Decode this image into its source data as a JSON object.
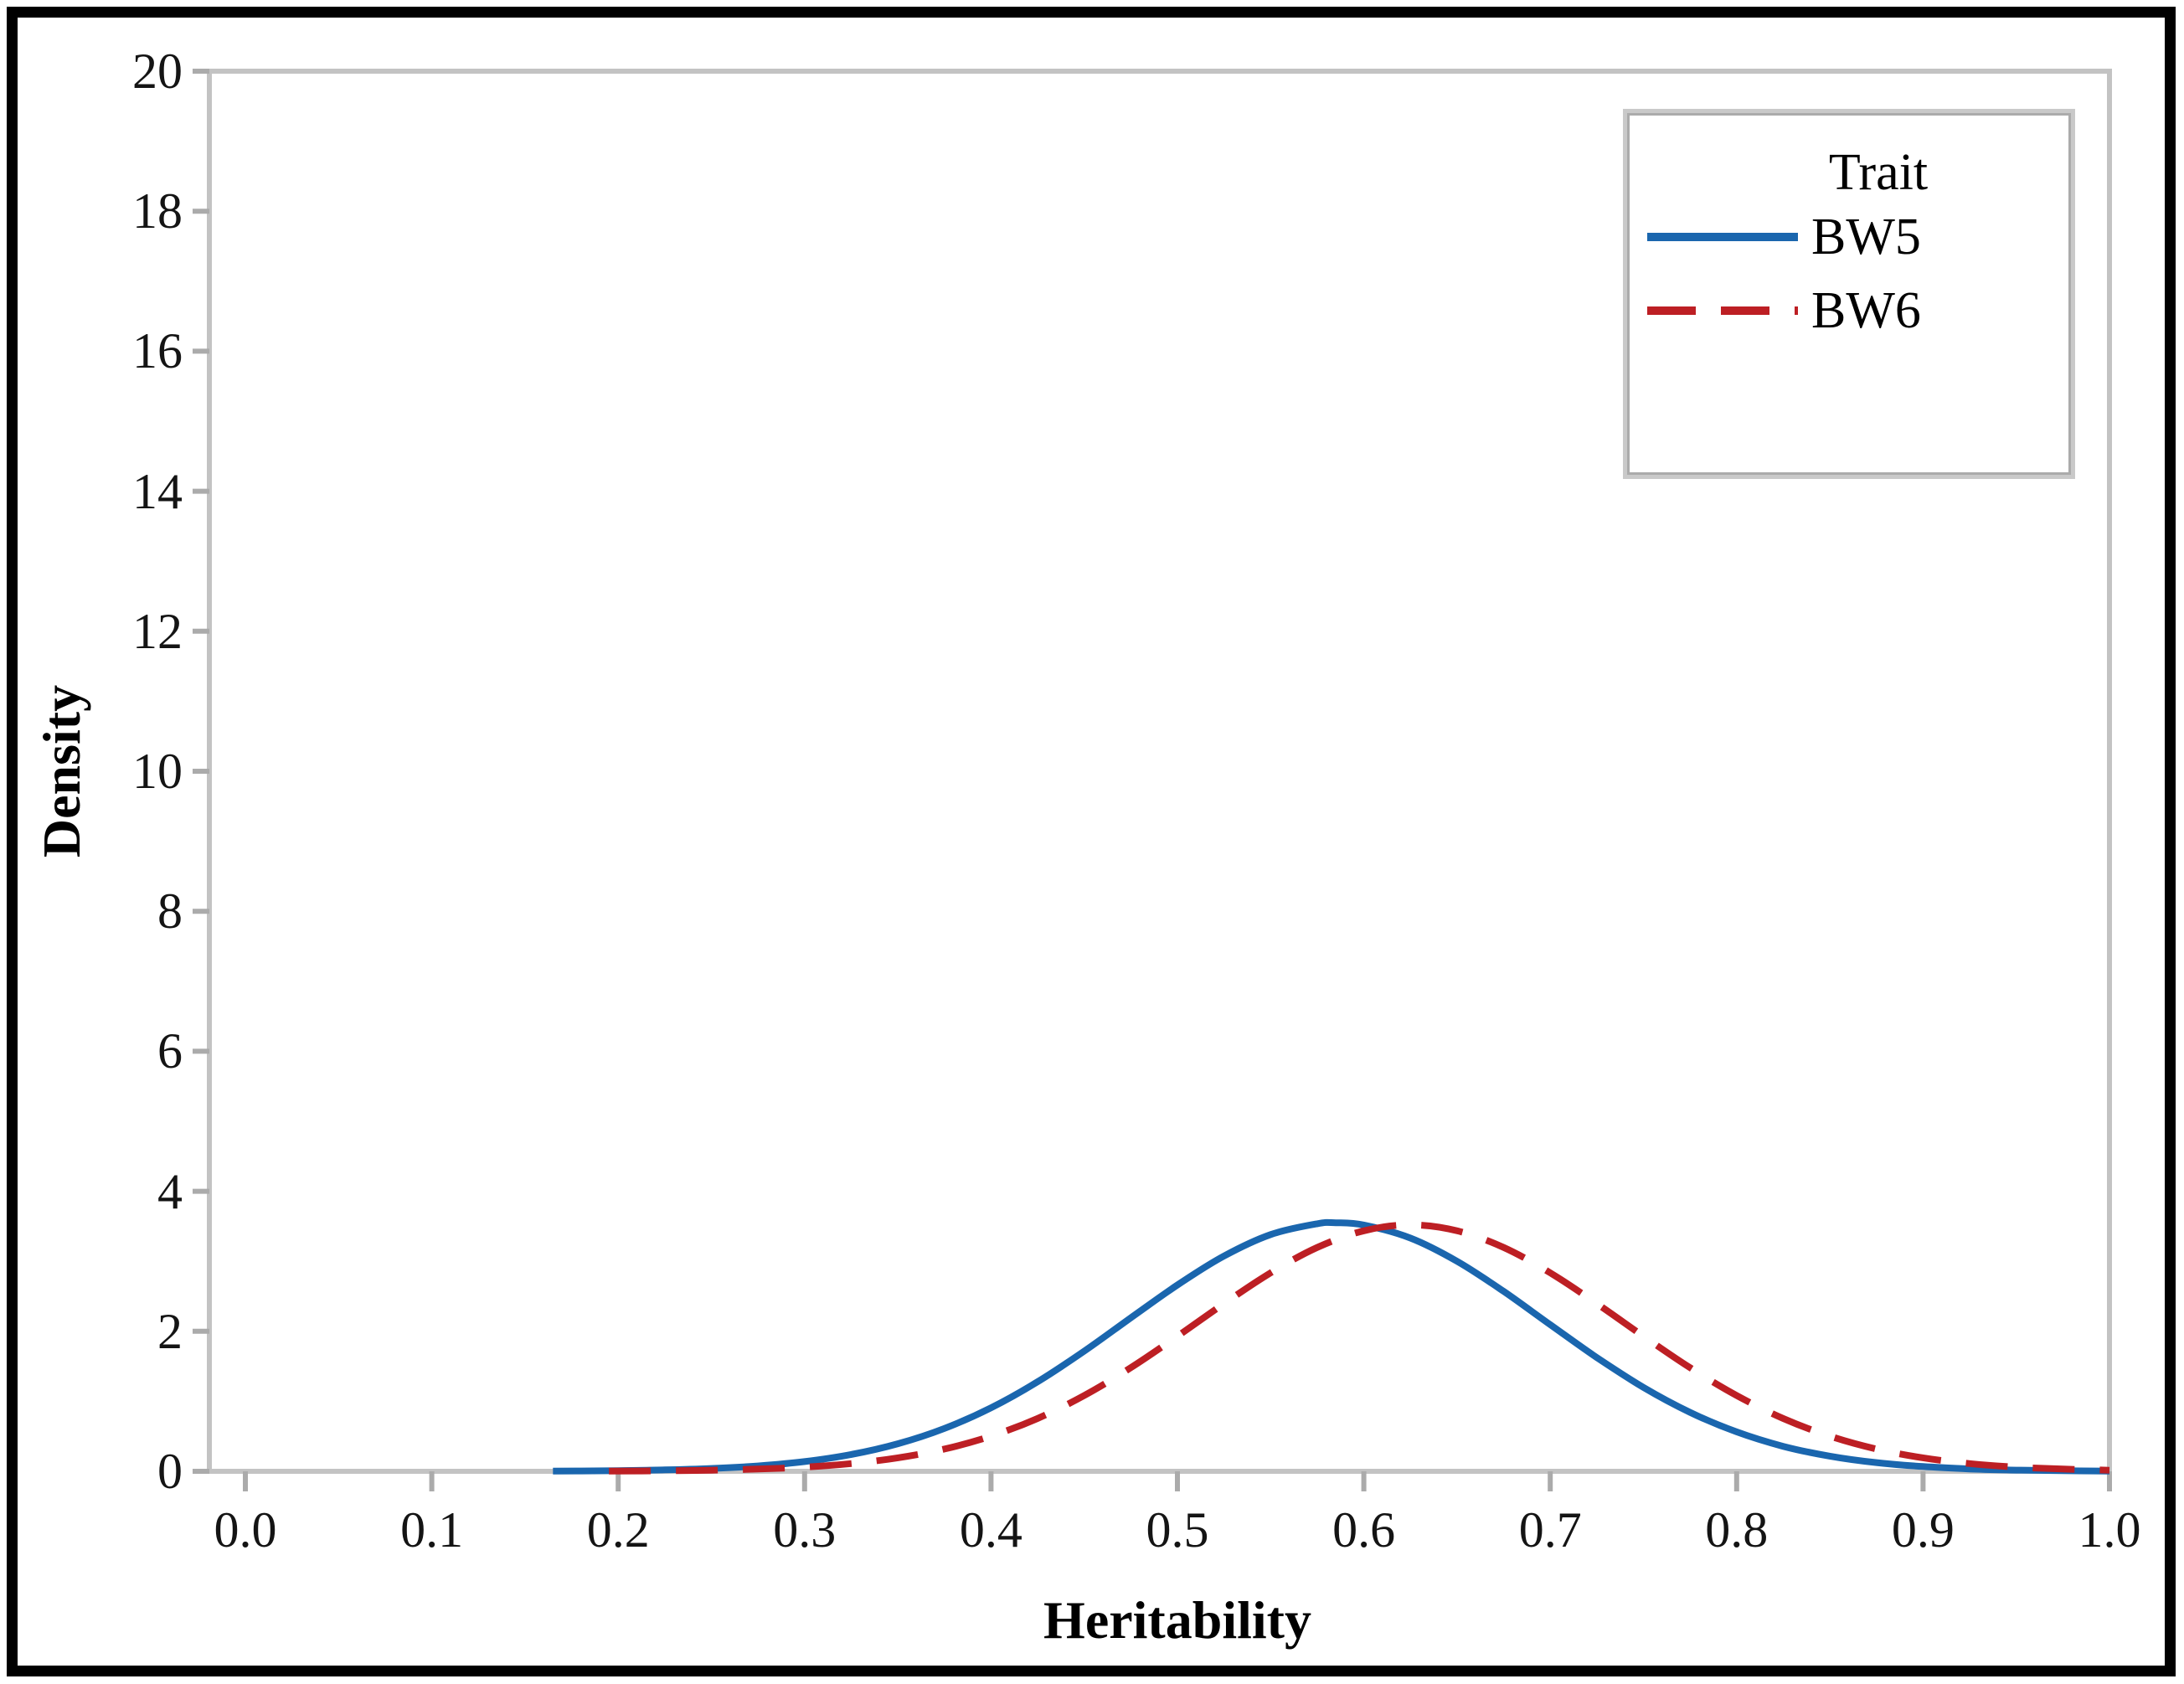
{
  "figure": {
    "background": "#ffffff",
    "border_color": "#000000"
  },
  "chart_data": {
    "type": "line",
    "title": "",
    "xlabel": "Heritability",
    "ylabel": "Density",
    "xlim": [
      0.0,
      1.0
    ],
    "ylim": [
      0,
      20
    ],
    "grid": "off",
    "axis_color": "#c3c3c3",
    "tick_color": "#ababab",
    "x_ticks": [
      "0.0",
      "0.1",
      "0.2",
      "0.3",
      "0.4",
      "0.5",
      "0.6",
      "0.7",
      "0.8",
      "0.9",
      "1.0"
    ],
    "y_ticks": [
      "0",
      "2",
      "4",
      "6",
      "8",
      "10",
      "12",
      "14",
      "16",
      "18",
      "20"
    ],
    "legend": {
      "title": "Trait",
      "position": "top-right",
      "entries": [
        {
          "label": "BW5",
          "line_style": "solid",
          "color": "#1a66ae"
        },
        {
          "label": "BW6",
          "line_style": "dashed",
          "color": "#bd1f24"
        }
      ]
    },
    "series": [
      {
        "name": "BW5",
        "color": "#1a66ae",
        "line_style": "solid",
        "peak": {
          "x": 0.585,
          "density": 3.55
        },
        "points": [
          [
            0.165,
            0.003
          ],
          [
            0.18,
            0.005
          ],
          [
            0.2,
            0.01
          ],
          [
            0.225,
            0.02
          ],
          [
            0.25,
            0.041
          ],
          [
            0.275,
            0.077
          ],
          [
            0.3,
            0.139
          ],
          [
            0.325,
            0.24
          ],
          [
            0.35,
            0.393
          ],
          [
            0.375,
            0.612
          ],
          [
            0.4,
            0.907
          ],
          [
            0.425,
            1.279
          ],
          [
            0.45,
            1.717
          ],
          [
            0.475,
            2.192
          ],
          [
            0.5,
            2.662
          ],
          [
            0.525,
            3.075
          ],
          [
            0.55,
            3.381
          ],
          [
            0.575,
            3.536
          ],
          [
            0.585,
            3.55
          ],
          [
            0.6,
            3.518
          ],
          [
            0.625,
            3.331
          ],
          [
            0.65,
            3.0
          ],
          [
            0.675,
            2.57
          ],
          [
            0.7,
            2.095
          ],
          [
            0.725,
            1.625
          ],
          [
            0.75,
            1.199
          ],
          [
            0.775,
            0.842
          ],
          [
            0.8,
            0.563
          ],
          [
            0.825,
            0.357
          ],
          [
            0.85,
            0.216
          ],
          [
            0.875,
            0.124
          ],
          [
            0.9,
            0.068
          ],
          [
            0.925,
            0.034
          ],
          [
            0.95,
            0.017
          ],
          [
            0.975,
            0.008
          ],
          [
            1.0,
            0.004
          ]
        ]
      },
      {
        "name": "BW6",
        "color": "#bd1f24",
        "line_style": "dashed",
        "peak": {
          "x": 0.625,
          "density": 3.52
        },
        "points": [
          [
            0.195,
            0.003
          ],
          [
            0.225,
            0.007
          ],
          [
            0.25,
            0.016
          ],
          [
            0.275,
            0.032
          ],
          [
            0.3,
            0.06
          ],
          [
            0.325,
            0.11
          ],
          [
            0.35,
            0.192
          ],
          [
            0.375,
            0.318
          ],
          [
            0.4,
            0.502
          ],
          [
            0.425,
            0.755
          ],
          [
            0.45,
            1.083
          ],
          [
            0.475,
            1.48
          ],
          [
            0.5,
            1.93
          ],
          [
            0.525,
            2.396
          ],
          [
            0.55,
            2.835
          ],
          [
            0.575,
            3.197
          ],
          [
            0.6,
            3.436
          ],
          [
            0.625,
            3.52
          ],
          [
            0.65,
            3.436
          ],
          [
            0.675,
            3.197
          ],
          [
            0.7,
            2.835
          ],
          [
            0.725,
            2.396
          ],
          [
            0.75,
            1.93
          ],
          [
            0.775,
            1.48
          ],
          [
            0.8,
            1.083
          ],
          [
            0.825,
            0.755
          ],
          [
            0.85,
            0.502
          ],
          [
            0.875,
            0.318
          ],
          [
            0.9,
            0.192
          ],
          [
            0.925,
            0.11
          ],
          [
            0.95,
            0.06
          ],
          [
            0.975,
            0.032
          ],
          [
            1.0,
            0.016
          ]
        ]
      }
    ]
  }
}
